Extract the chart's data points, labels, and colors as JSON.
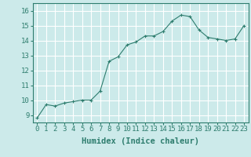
{
  "x": [
    0,
    1,
    2,
    3,
    4,
    5,
    6,
    7,
    8,
    9,
    10,
    11,
    12,
    13,
    14,
    15,
    16,
    17,
    18,
    19,
    20,
    21,
    22,
    23
  ],
  "y": [
    8.8,
    9.7,
    9.6,
    9.8,
    9.9,
    10.0,
    10.0,
    10.6,
    12.6,
    12.9,
    13.7,
    13.9,
    14.3,
    14.3,
    14.6,
    15.3,
    15.7,
    15.6,
    14.7,
    14.2,
    14.1,
    14.0,
    14.1,
    15.0
  ],
  "line_color": "#2e7d6e",
  "marker": "+",
  "marker_size": 3,
  "bg_color": "#cceaea",
  "grid_color": "#ffffff",
  "xlabel": "Humidex (Indice chaleur)",
  "ylim": [
    8.5,
    16.5
  ],
  "yticks": [
    9,
    10,
    11,
    12,
    13,
    14,
    15,
    16
  ],
  "xticks": [
    0,
    1,
    2,
    3,
    4,
    5,
    6,
    7,
    8,
    9,
    10,
    11,
    12,
    13,
    14,
    15,
    16,
    17,
    18,
    19,
    20,
    21,
    22,
    23
  ],
  "tick_color": "#2e7d6e",
  "label_color": "#2e7d6e",
  "font_size": 6.5,
  "xlabel_fontsize": 7.5
}
